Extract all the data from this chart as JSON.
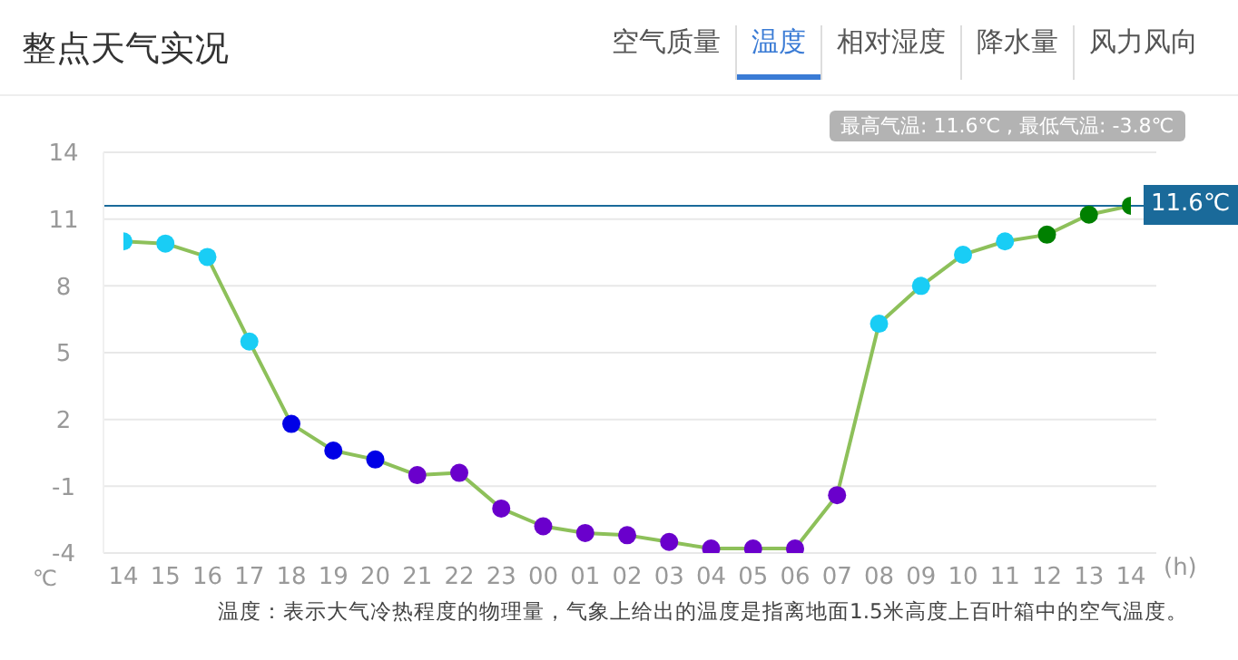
{
  "chart_data": {
    "type": "line",
    "title": "整点天气实况",
    "xlabel": "(h)",
    "ylabel": "℃",
    "categories": [
      "14",
      "15",
      "16",
      "17",
      "18",
      "19",
      "20",
      "21",
      "22",
      "23",
      "00",
      "01",
      "02",
      "03",
      "04",
      "05",
      "06",
      "07",
      "08",
      "09",
      "10",
      "11",
      "12",
      "13",
      "14"
    ],
    "series": [
      {
        "color": "#8dc05a",
        "values": [
          10.0,
          9.9,
          9.3,
          5.5,
          1.8,
          0.6,
          0.2,
          -0.5,
          -0.4,
          -2.0,
          -2.8,
          -3.1,
          -3.2,
          -3.5,
          -3.8,
          -3.8,
          -3.8,
          -1.4,
          6.3,
          8.0,
          9.4,
          10.0,
          10.3,
          11.2,
          11.6
        ],
        "colors": [
          "#19cdf5",
          "#19cdf5",
          "#19cdf5",
          "#19cdf5",
          "#0000e6",
          "#0000e6",
          "#0000e6",
          "#6a00cc",
          "#6a00cc",
          "#6a00cc",
          "#6a00cc",
          "#6a00cc",
          "#6a00cc",
          "#6a00cc",
          "#6a00cc",
          "#6a00cc",
          "#6a00cc",
          "#6a00cc",
          "#19cdf5",
          "#19cdf5",
          "#19cdf5",
          "#19cdf5",
          "#008000",
          "#008000",
          "#008000"
        ]
      }
    ],
    "ylim": [
      -4,
      14
    ],
    "yticks": [
      -4,
      -1,
      2,
      5,
      8,
      11,
      14
    ],
    "grid": "y",
    "marker": "circle",
    "ref_lines": [
      {
        "axis": "y",
        "value": 11.6,
        "label": "11.6℃",
        "color": "#1a6a9a"
      }
    ],
    "annotations": [
      "最高气温: 11.6℃ , 最低气温: -3.8℃",
      "空气质量",
      "温度",
      "相对湿度",
      "降水量",
      "风力风向",
      "温度：表示大气冷热程度的物理量，气象上给出的温度是指离地面1.5米高度上百叶箱中的空气温度。"
    ]
  }
}
